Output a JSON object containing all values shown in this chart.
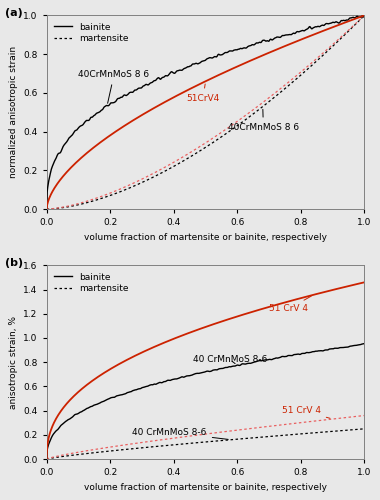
{
  "xlabel": "volume fraction of martensite or bainite, respectively",
  "ylabel_a": "normalized anisotropic strain",
  "ylabel_b": "anisotropic strain, %",
  "ylim_a": [
    0,
    1.0
  ],
  "ylim_b": [
    0,
    1.6
  ],
  "yticks_a": [
    0,
    0.2,
    0.4,
    0.6,
    0.8,
    1.0
  ],
  "yticks_b": [
    0,
    0.2,
    0.4,
    0.6,
    0.8,
    1.0,
    1.2,
    1.4,
    1.6
  ],
  "xlim": [
    0,
    1.0
  ],
  "xticks": [
    0,
    0.2,
    0.4,
    0.6,
    0.8,
    1.0
  ],
  "color_black": "#000000",
  "color_red": "#cc2200",
  "color_red_dot": "#e86060",
  "bg_color": "#e8e8e8",
  "legend_bainite": "bainite",
  "legend_martensite": "martensite",
  "label_40_bainite_a": "40CrMnMoS 8 6",
  "label_51_bainite_a": "51CrV4",
  "label_40_martensite_a": "40CrMnMoS 8 6",
  "label_40_bainite_b": "40 CrMnMoS 8-6",
  "label_51_bainite_b": "51 CrV 4",
  "label_40_martensite_b": "40 CrMnMoS 8-6",
  "label_51_martensite_b": "51 CrV 4",
  "panel_a_label": "(a)",
  "panel_b_label": "(b)"
}
